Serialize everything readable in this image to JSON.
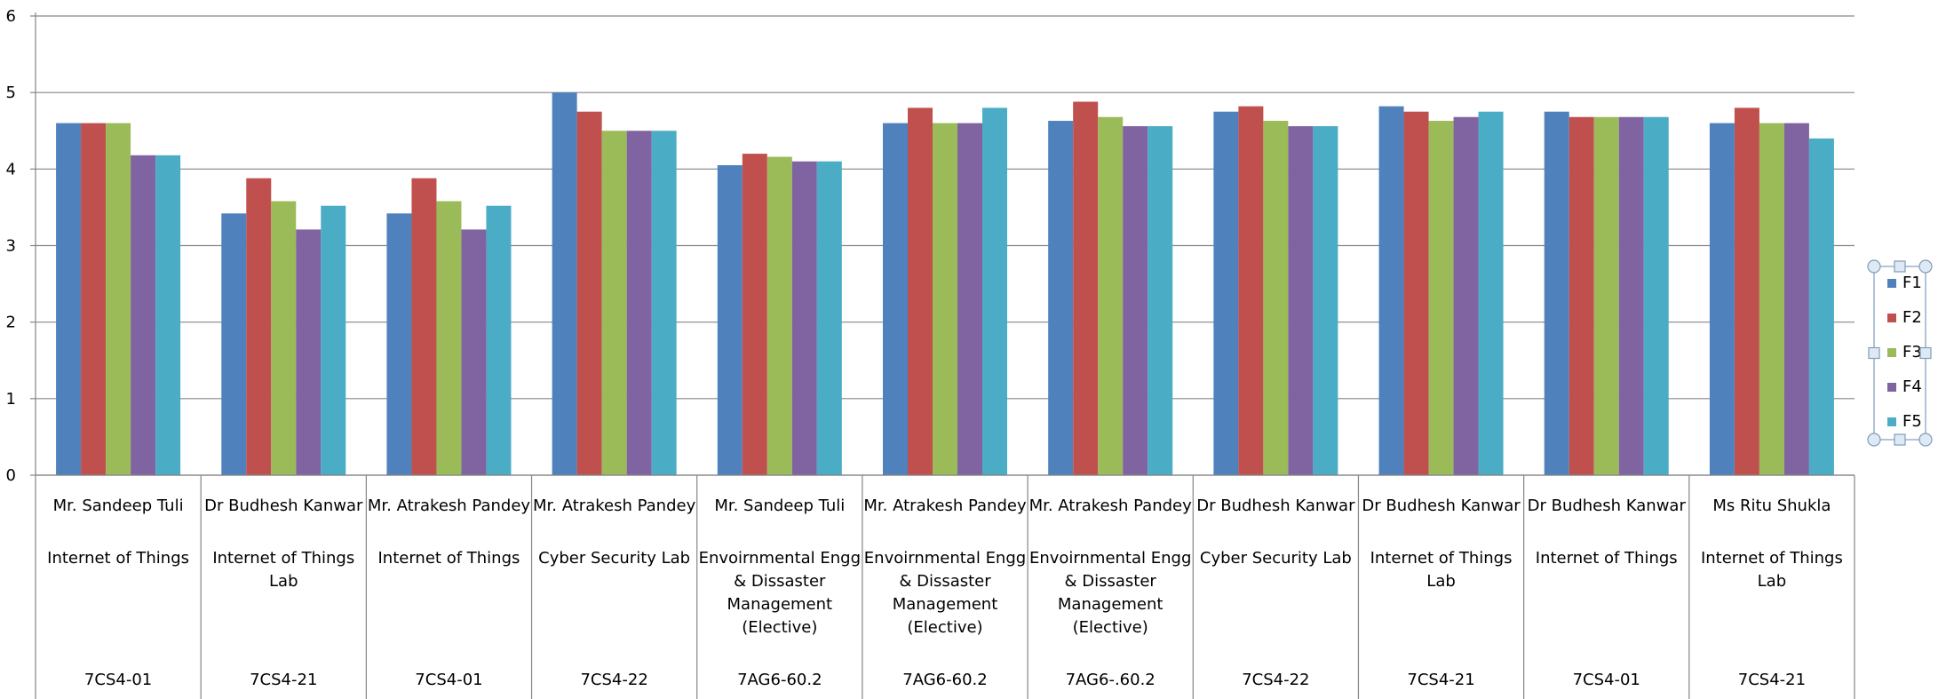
{
  "chart_data": {
    "type": "bar",
    "ylim": [
      0,
      6
    ],
    "yticks": [
      "0",
      "1",
      "2",
      "3",
      "4",
      "5",
      "6"
    ],
    "grid": true,
    "legend_position": "right",
    "categories": [
      {
        "teacher": "Mr. Sandeep Tuli",
        "subject": [
          "Internet of Things"
        ],
        "code": "7CS4-01"
      },
      {
        "teacher": "Dr Budhesh Kanwar",
        "subject": [
          "Internet of Things",
          "Lab"
        ],
        "code": "7CS4-21"
      },
      {
        "teacher": "Mr. Atrakesh Pandey",
        "subject": [
          "Internet of Things"
        ],
        "code": "7CS4-01"
      },
      {
        "teacher": "Mr. Atrakesh Pandey",
        "subject": [
          "Cyber Security Lab"
        ],
        "code": "7CS4-22"
      },
      {
        "teacher": "Mr. Sandeep Tuli",
        "subject": [
          "Envoirnmental Engg",
          "& Dissaster",
          "Management",
          "(Elective)"
        ],
        "code": "7AG6-60.2"
      },
      {
        "teacher": "Mr. Atrakesh Pandey",
        "subject": [
          "Envoirnmental Engg",
          "& Dissaster",
          "Management",
          "(Elective)"
        ],
        "code": "7AG6-60.2"
      },
      {
        "teacher": "Mr. Atrakesh Pandey",
        "subject": [
          "Envoirnmental Engg",
          "& Dissaster",
          "Management",
          "(Elective)"
        ],
        "code": "7AG6-.60.2"
      },
      {
        "teacher": "Dr Budhesh Kanwar",
        "subject": [
          "Cyber Security Lab"
        ],
        "code": "7CS4-22"
      },
      {
        "teacher": "Dr Budhesh Kanwar",
        "subject": [
          "Internet of Things",
          "Lab"
        ],
        "code": "7CS4-21"
      },
      {
        "teacher": "Dr Budhesh Kanwar",
        "subject": [
          "Internet of Things"
        ],
        "code": "7CS4-01"
      },
      {
        "teacher": "Ms Ritu Shukla",
        "subject": [
          "Internet of Things",
          "Lab"
        ],
        "code": "7CS4-21"
      }
    ],
    "series": [
      {
        "name": "F1",
        "color": "#4F81BD",
        "values": [
          4.6,
          3.42,
          3.42,
          5.0,
          4.05,
          4.6,
          4.63,
          4.75,
          4.82,
          4.75,
          4.6
        ]
      },
      {
        "name": "F2",
        "color": "#C0504D",
        "values": [
          4.6,
          3.88,
          3.88,
          4.75,
          4.2,
          4.8,
          4.88,
          4.82,
          4.75,
          4.68,
          4.8
        ]
      },
      {
        "name": "F3",
        "color": "#9BBB59",
        "values": [
          4.6,
          3.58,
          3.58,
          4.5,
          4.16,
          4.6,
          4.68,
          4.63,
          4.63,
          4.68,
          4.6
        ]
      },
      {
        "name": "F4",
        "color": "#8064A2",
        "values": [
          4.18,
          3.21,
          3.21,
          4.5,
          4.1,
          4.6,
          4.56,
          4.56,
          4.68,
          4.68,
          4.6
        ]
      },
      {
        "name": "F5",
        "color": "#4BACC6",
        "values": [
          4.18,
          3.52,
          3.52,
          4.5,
          4.1,
          4.8,
          4.56,
          4.56,
          4.75,
          4.68,
          4.4
        ]
      }
    ]
  }
}
